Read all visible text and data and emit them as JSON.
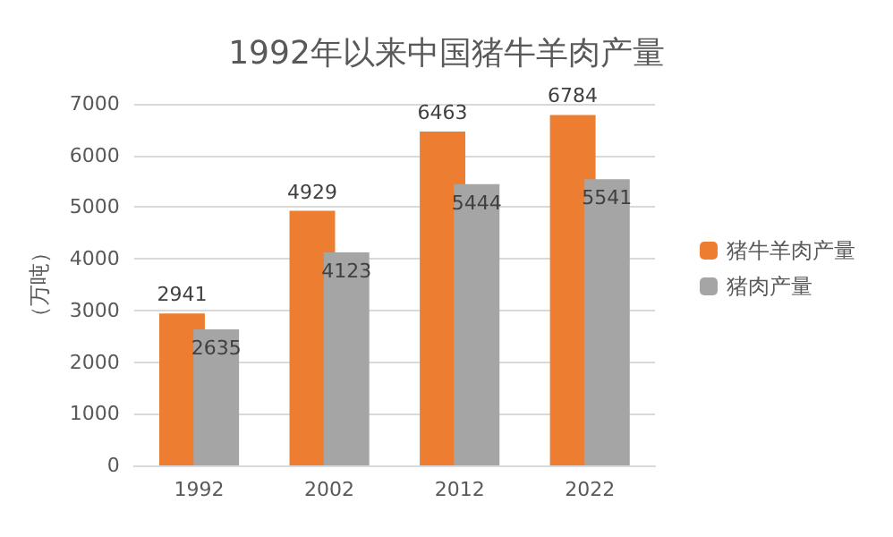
{
  "chart_data": {
    "type": "bar",
    "title": "1992年以来中国猪牛羊肉产量",
    "ylabel": "（万吨）",
    "categories": [
      "1992",
      "2002",
      "2012",
      "2022"
    ],
    "series": [
      {
        "name": "猪牛羊肉产量",
        "color": "#ed7d31",
        "values": [
          2941,
          4929,
          6463,
          6784
        ]
      },
      {
        "name": "猪肉产量",
        "color": "#a5a5a5",
        "values": [
          2635,
          4123,
          5444,
          5541
        ]
      }
    ],
    "ylim": [
      0,
      7000
    ],
    "yticks": [
      0,
      1000,
      2000,
      3000,
      4000,
      5000,
      6000,
      7000
    ],
    "grid": "y",
    "legend": "right",
    "data_labels": true
  }
}
